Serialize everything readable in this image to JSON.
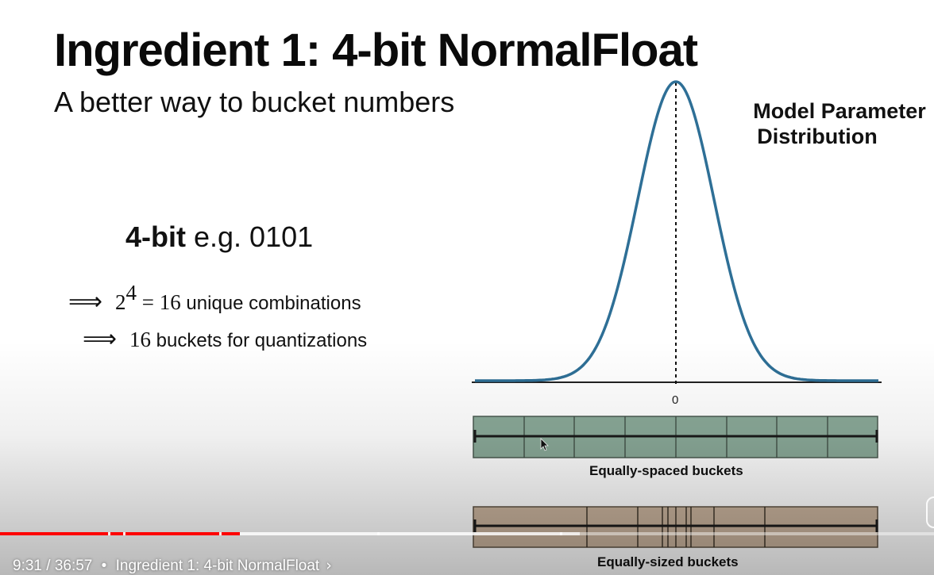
{
  "slide": {
    "title": "Ingredient 1: 4-bit NormalFloat",
    "subtitle": "A better way to bucket numbers",
    "model_param_line1": "Model Parameter",
    "model_param_line2": "Distribution",
    "bits_bold": "4-bit",
    "bits_rest": " e.g. 0101",
    "line1_arrow": "⟹",
    "line1_base": "2",
    "line1_exp": "4",
    "line1_eq": " = 16",
    "line1_text": " unique combinations",
    "line2_arrow": "⟹",
    "line2_num": "16",
    "line2_text": " buckets for quantizations",
    "zero_label": "0",
    "equal_spaced_label": "Equally-spaced buckets",
    "equal_sized_label": "Equally-sized buckets",
    "colors": {
      "curve": "#2e6f96",
      "spaced_fill": "#8aa998",
      "sized_fill": "#c8b29c"
    }
  },
  "player": {
    "time_current": "9:31",
    "time_total": "36:57",
    "separator": "/",
    "bullet": "•",
    "chapter_title": "Ingredient 1: 4-bit NormalFloat",
    "chevron": "›",
    "played_fraction": 0.257,
    "colors": {
      "played": "#ff0000"
    }
  }
}
